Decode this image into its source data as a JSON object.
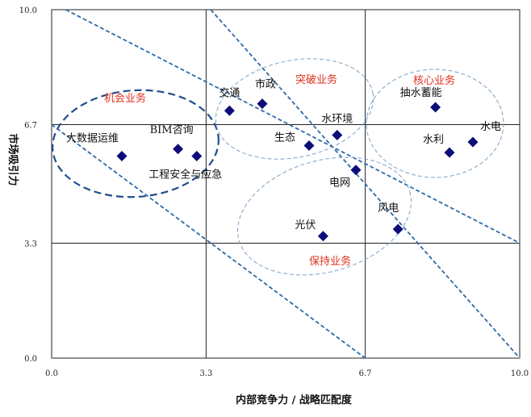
{
  "chart_data": {
    "type": "scatter",
    "title": "",
    "xlabel": "内部竞争力 / 战略匹配度",
    "ylabel": "市场吸引力",
    "xlim": [
      0,
      10
    ],
    "ylim": [
      0,
      10
    ],
    "x_ticks": [
      "0.0",
      "3.3",
      "6.7",
      "10.0"
    ],
    "y_ticks": [
      "0.0",
      "3.3",
      "6.7",
      "10.0"
    ],
    "gridlines_at": [
      3.3,
      6.7
    ],
    "marker": {
      "shape": "diamond",
      "color": "#0d0d7a"
    },
    "diagonal_lines": [
      {
        "from": [
          0,
          6.7
        ],
        "to": [
          6.7,
          0
        ]
      },
      {
        "from": [
          0.3,
          10
        ],
        "to": [
          10,
          3.3
        ]
      },
      {
        "from": [
          3.4,
          10
        ],
        "to": [
          10,
          0
        ]
      }
    ],
    "points": [
      {
        "label": "大数据运维",
        "x": 1.5,
        "y": 5.8
      },
      {
        "label": "BIM咨询",
        "x": 2.7,
        "y": 6.0
      },
      {
        "label": "工程安全与应急",
        "x": 3.1,
        "y": 5.8
      },
      {
        "label": "交通",
        "x": 3.8,
        "y": 7.1
      },
      {
        "label": "市政",
        "x": 4.5,
        "y": 7.3
      },
      {
        "label": "生态",
        "x": 5.5,
        "y": 6.1
      },
      {
        "label": "水环境",
        "x": 6.1,
        "y": 6.4
      },
      {
        "label": "电网",
        "x": 6.5,
        "y": 5.4
      },
      {
        "label": "风电",
        "x": 7.4,
        "y": 3.7
      },
      {
        "label": "光伏",
        "x": 5.8,
        "y": 3.5
      },
      {
        "label": "抽水蓄能",
        "x": 8.2,
        "y": 7.2
      },
      {
        "label": "水利",
        "x": 8.5,
        "y": 5.9
      },
      {
        "label": "水电",
        "x": 9.0,
        "y": 6.2
      }
    ],
    "groups": [
      {
        "label": "机会业务",
        "color": "#e0301e",
        "ellipse_color": "#1f4e8c",
        "dashed": true,
        "bold": true
      },
      {
        "label": "突破业务",
        "color": "#e0301e",
        "ellipse_color": "#7aa3c8",
        "dashed": true,
        "bold": false
      },
      {
        "label": "核心业务",
        "color": "#e0301e",
        "ellipse_color": "#7aa3c8",
        "dashed": true,
        "bold": false
      },
      {
        "label": "保持业务",
        "color": "#e0301e",
        "ellipse_color": "#7aa3c8",
        "dashed": true,
        "bold": false
      }
    ]
  }
}
